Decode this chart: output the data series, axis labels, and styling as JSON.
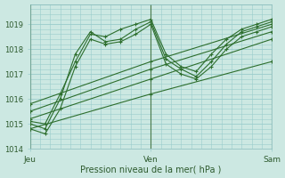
{
  "title": "",
  "xlabel": "Pression niveau de la mer( hPa )",
  "ylabel": "",
  "bg_color": "#cce8e2",
  "grid_color": "#99cccc",
  "line_color": "#2d6e2d",
  "ylim": [
    1014.0,
    1019.5
  ],
  "xlim": [
    0,
    48
  ],
  "xtick_positions": [
    0,
    24,
    48
  ],
  "xtick_labels": [
    "Jeu",
    "Ven",
    "Sam"
  ],
  "ytick_positions": [
    1014,
    1015,
    1016,
    1017,
    1018,
    1019
  ],
  "series": [
    {
      "x": [
        0,
        3,
        6,
        9,
        12,
        15,
        18,
        21,
        24,
        27,
        30,
        33,
        36,
        39,
        42,
        45,
        48
      ],
      "y": [
        1015.0,
        1014.8,
        1016.0,
        1017.8,
        1018.7,
        1018.3,
        1018.4,
        1018.8,
        1019.1,
        1017.6,
        1017.2,
        1016.9,
        1017.5,
        1018.2,
        1018.7,
        1018.9,
        1019.1
      ]
    },
    {
      "x": [
        0,
        3,
        6,
        9,
        12,
        15,
        18,
        21,
        24,
        27,
        30,
        33,
        36,
        39,
        42,
        45,
        48
      ],
      "y": [
        1014.8,
        1014.6,
        1015.6,
        1017.3,
        1018.4,
        1018.2,
        1018.3,
        1018.6,
        1019.0,
        1017.4,
        1017.0,
        1016.8,
        1017.3,
        1018.0,
        1018.5,
        1018.7,
        1018.9
      ]
    },
    {
      "x": [
        0,
        3,
        6,
        9,
        12,
        15,
        18,
        21,
        24,
        27,
        30,
        33,
        36,
        39,
        42,
        45,
        48
      ],
      "y": [
        1015.1,
        1015.0,
        1016.2,
        1017.5,
        1018.6,
        1018.5,
        1018.8,
        1019.0,
        1019.2,
        1017.8,
        1017.3,
        1017.1,
        1017.8,
        1018.4,
        1018.8,
        1019.0,
        1019.2
      ]
    },
    {
      "x": [
        0,
        24,
        48
      ],
      "y": [
        1015.8,
        1017.5,
        1019.0
      ]
    },
    {
      "x": [
        0,
        24,
        48
      ],
      "y": [
        1015.5,
        1017.2,
        1018.7
      ]
    },
    {
      "x": [
        0,
        24,
        48
      ],
      "y": [
        1015.2,
        1016.8,
        1018.4
      ]
    },
    {
      "x": [
        0,
        24,
        48
      ],
      "y": [
        1014.8,
        1016.2,
        1017.5
      ]
    }
  ]
}
